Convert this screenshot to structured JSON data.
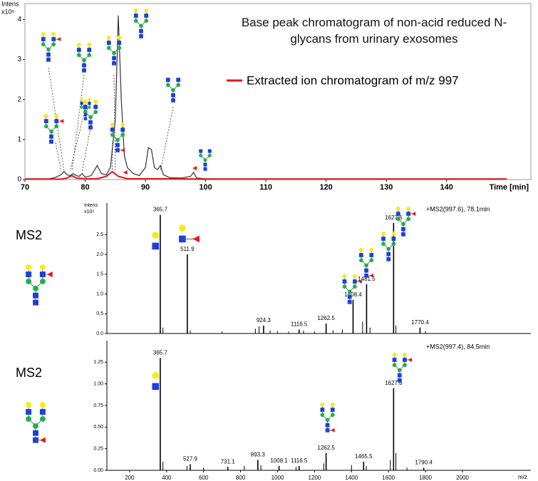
{
  "chart_data": [
    {
      "type": "line",
      "y_label": "Intens",
      "y_unit": "x10⁸",
      "x_label": "Time [min]",
      "xlim": [
        70,
        154
      ],
      "xticks": [
        70,
        80,
        90,
        100,
        110,
        120,
        130,
        140
      ],
      "ylim": [
        0,
        4.4
      ],
      "yticks": [
        0,
        1,
        2,
        3,
        4
      ],
      "series": [
        {
          "name": "Base peak chromatogram of non-acid reduced N-glycans from urinary exosomes",
          "color": "#333333",
          "x": [
            70,
            74,
            75,
            76,
            76.5,
            77,
            77.5,
            78,
            78.5,
            79,
            79.5,
            80,
            81,
            82,
            82.7,
            83.5,
            84.2,
            85,
            85.5,
            86,
            86.5,
            87,
            88,
            89,
            90,
            90.5,
            91,
            91.5,
            92,
            92.5,
            93,
            94,
            96,
            97.5,
            98,
            98.5,
            100,
            110,
            120,
            130,
            140,
            150
          ],
          "values": [
            0.02,
            0.02,
            0.05,
            0.12,
            0.2,
            0.12,
            0.1,
            0.15,
            0.1,
            0.08,
            0.15,
            0.06,
            0.1,
            0.35,
            0.15,
            0.12,
            0.3,
            1.5,
            4.1,
            2.0,
            0.6,
            0.3,
            0.15,
            0.1,
            0.3,
            0.8,
            0.75,
            0.3,
            0.25,
            0.35,
            0.12,
            0.05,
            0.04,
            0.08,
            0.18,
            0.04,
            0.02,
            0.02,
            0.02,
            0.02,
            0.02,
            0.02
          ]
        },
        {
          "name": "Extracted ion chromatogram of m/z 997",
          "color": "#e8141b",
          "x": [
            70,
            76,
            77,
            77.8,
            78.5,
            80,
            82,
            83.5,
            84.5,
            85.5,
            87,
            95,
            100,
            150
          ],
          "values": [
            0.01,
            0.01,
            0.04,
            0.1,
            0.04,
            0.02,
            0.02,
            0.08,
            0.2,
            0.08,
            0.02,
            0.02,
            0.01,
            0.01
          ]
        }
      ]
    },
    {
      "type": "stem",
      "panel_label": "MS2",
      "annotation": "+MS2(997.6), 78.1min",
      "y_label": "Intens",
      "y_unit": "x10⁶",
      "xlim": [
        77,
        2370
      ],
      "ylim": [
        0,
        3.3
      ],
      "yticks": [
        {
          "value": 0,
          "label": "0.0"
        },
        {
          "value": 0.5,
          "label": "0.5"
        },
        {
          "value": 1,
          "label": "1.0"
        },
        {
          "value": 1.5,
          "label": "1.5"
        },
        {
          "value": 2,
          "label": "2.0"
        },
        {
          "value": 2.5,
          "label": "2.5"
        }
      ],
      "peaks": {
        "x": [
          365.7,
          511.9,
          924.3,
          1116.5,
          1262.5,
          1408.4,
          1481.5,
          1627.6,
          1770.4
        ],
        "values": [
          3.0,
          2.0,
          0.2,
          0.1,
          0.25,
          0.85,
          1.25,
          2.8,
          0.15
        ]
      },
      "noise": {
        "x": [
          380,
          528,
          700,
          880,
          900,
          960,
          1000,
          1060,
          1140,
          1200,
          1300,
          1350,
          1460,
          1500,
          1640,
          1800
        ],
        "values": [
          0.15,
          0.08,
          0.05,
          0.12,
          0.18,
          0.08,
          0.06,
          0.05,
          0.07,
          0.05,
          0.08,
          0.1,
          0.3,
          0.15,
          0.2,
          0.06
        ]
      },
      "color": "#000000"
    },
    {
      "type": "stem",
      "panel_label": "MS2",
      "annotation": "+MS2(997.4), 84.5min",
      "x_label": "m/z",
      "xlim": [
        77,
        2370
      ],
      "ylim": [
        0,
        1.5
      ],
      "xticks": [
        200,
        400,
        600,
        800,
        1000,
        1200,
        1400,
        1600,
        1800,
        2000
      ],
      "yticks": [
        {
          "value": 0,
          "label": "0.00"
        },
        {
          "value": 0.25,
          "label": "0.25"
        },
        {
          "value": 0.5,
          "label": "0.50"
        },
        {
          "value": 0.75,
          "label": "0.75"
        },
        {
          "value": 1,
          "label": "1.00"
        },
        {
          "value": 1.25,
          "label": "1.25"
        }
      ],
      "peaks": {
        "x": [
          365.7,
          527.9,
          731.1,
          893.3,
          1008.1,
          1116.5,
          1262.5,
          1465.5,
          1627.6,
          1790.4
        ],
        "values": [
          1.3,
          0.07,
          0.04,
          0.12,
          0.05,
          0.05,
          0.2,
          0.1,
          0.95,
          0.03
        ]
      },
      "noise": {
        "x": [
          380,
          510,
          600,
          820,
          910,
          1100,
          1250,
          1400,
          1480,
          1610,
          1640,
          1700
        ],
        "values": [
          0.1,
          0.05,
          0.03,
          0.05,
          0.06,
          0.04,
          0.08,
          0.06,
          0.05,
          0.12,
          0.2,
          0.03
        ]
      },
      "color": "#000000"
    }
  ]
}
